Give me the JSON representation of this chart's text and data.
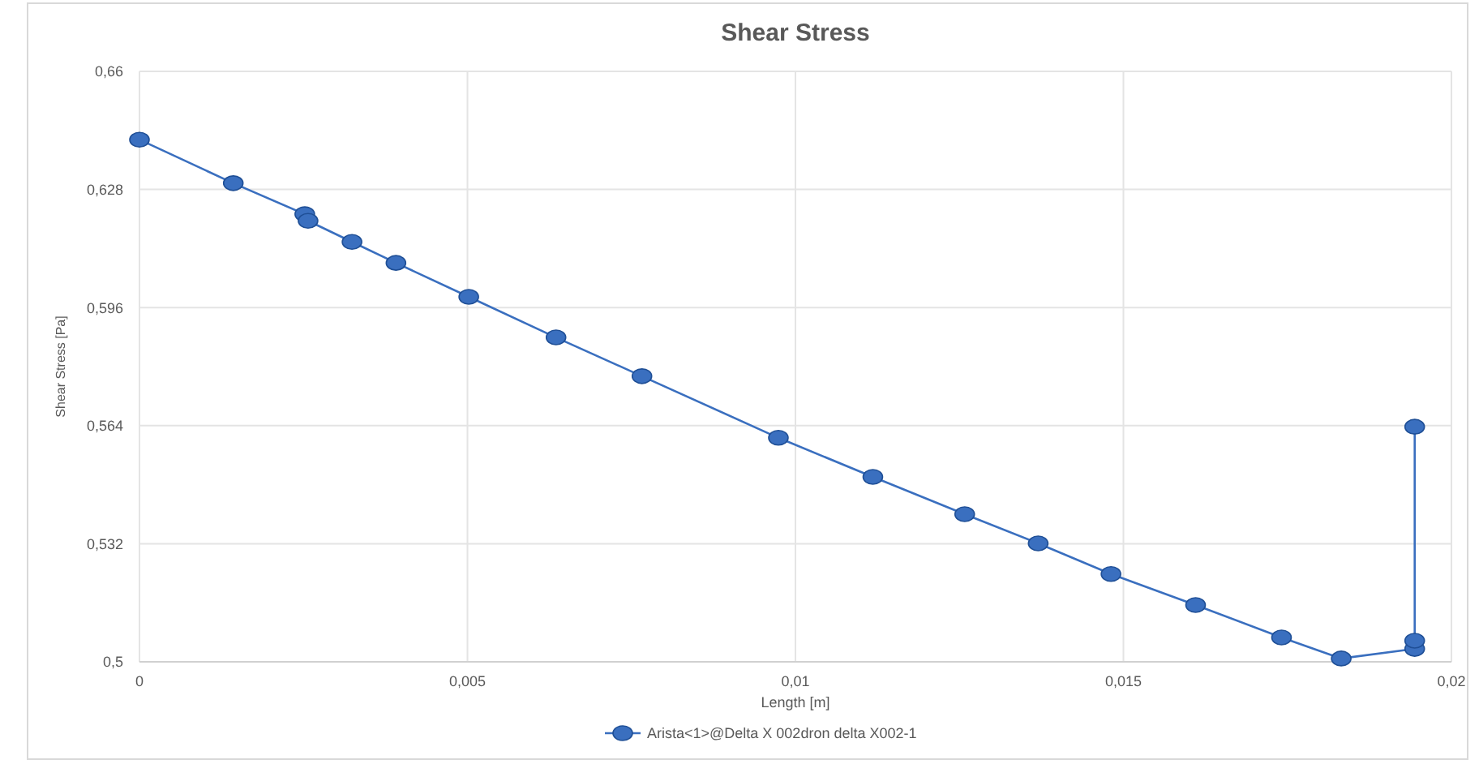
{
  "chart_data": {
    "type": "line",
    "title": "Shear Stress",
    "xlabel": "Length [m]",
    "ylabel": "Shear Stress [Pa]",
    "xlim": [
      0,
      0.02
    ],
    "ylim": [
      0.5,
      0.66
    ],
    "xticks": [
      {
        "value": 0,
        "label": "0"
      },
      {
        "value": 0.005,
        "label": "0,005"
      },
      {
        "value": 0.01,
        "label": "0,01"
      },
      {
        "value": 0.015,
        "label": "0,015"
      },
      {
        "value": 0.02,
        "label": "0,02"
      }
    ],
    "yticks": [
      {
        "value": 0.5,
        "label": "0,5"
      },
      {
        "value": 0.532,
        "label": "0,532"
      },
      {
        "value": 0.564,
        "label": "0,564"
      },
      {
        "value": 0.596,
        "label": "0,596"
      },
      {
        "value": 0.628,
        "label": "0,628"
      },
      {
        "value": 0.66,
        "label": "0,66"
      }
    ],
    "grid": true,
    "legend": "bottom",
    "marker": "circle",
    "line_style": "solid",
    "series": [
      {
        "name": "Arista<1>@Delta X 002dron delta X002-1",
        "color": "#3a6fbf",
        "x": [
          0,
          0.00143,
          0.00252,
          0.00257,
          0.00324,
          0.00391,
          0.00502,
          0.00635,
          0.00766,
          0.00974,
          0.01118,
          0.01258,
          0.0137,
          0.01481,
          0.0161,
          0.01741,
          0.01832,
          0.01944,
          0.01944,
          0.01944
        ],
        "values": [
          0.6415,
          0.6297,
          0.6213,
          0.6195,
          0.6138,
          0.6081,
          0.5989,
          0.5879,
          0.5774,
          0.5607,
          0.5501,
          0.54,
          0.5321,
          0.5238,
          0.5154,
          0.5066,
          0.5009,
          0.5035,
          0.5057,
          0.5637
        ]
      }
    ]
  }
}
